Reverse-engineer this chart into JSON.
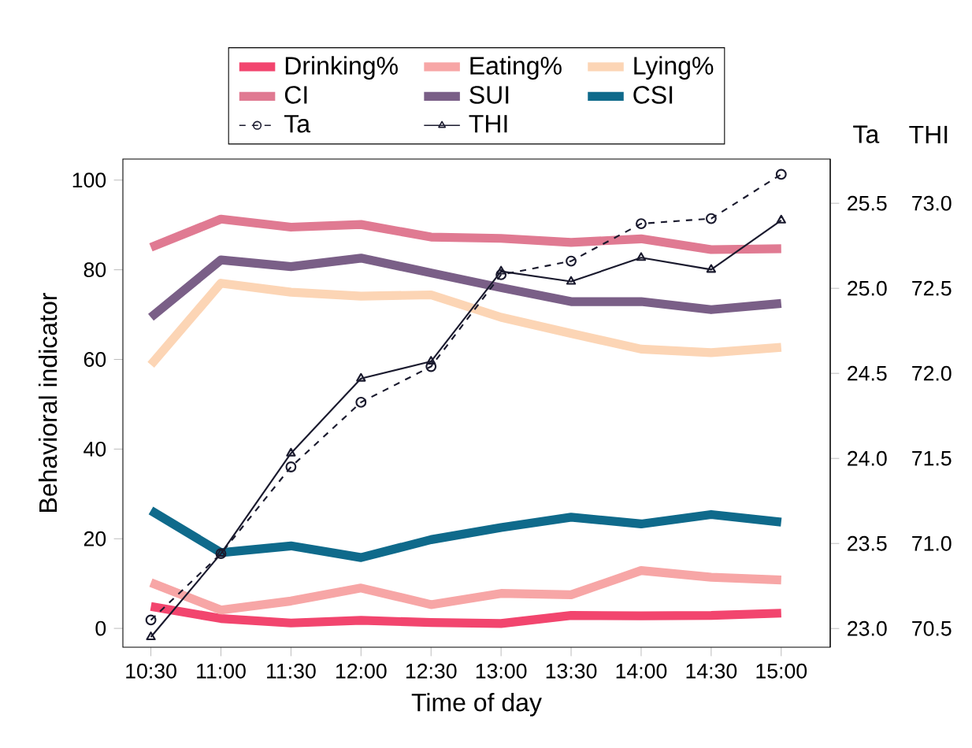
{
  "chart_data": {
    "type": "line",
    "xlabel": "Time of day",
    "ylabel": "Behavioral indicator",
    "y2label": "Ta",
    "y3label": "THI",
    "categories": [
      "10:30",
      "11:00",
      "11:30",
      "12:00",
      "12:30",
      "13:00",
      "13:30",
      "14:00",
      "14:30",
      "15:00"
    ],
    "legend": "top",
    "ylim": [
      -4.2,
      104.7
    ],
    "yticks": [
      0,
      20,
      40,
      60,
      80,
      100
    ],
    "y2lim": [
      22.89,
      25.76
    ],
    "y2ticks": [
      {
        "value": 23,
        "label": "23.0"
      },
      {
        "value": 23.5,
        "label": "23.5"
      },
      {
        "value": 24,
        "label": "24.0"
      },
      {
        "value": 24.5,
        "label": "24.5"
      },
      {
        "value": 25,
        "label": "25.0"
      },
      {
        "value": 25.5,
        "label": "25.5"
      }
    ],
    "y3lim": [
      70.39,
      73.26
    ],
    "y3ticks": [
      {
        "value": 70.5,
        "label": "70.5"
      },
      {
        "value": 71,
        "label": "71.0"
      },
      {
        "value": 71.5,
        "label": "71.5"
      },
      {
        "value": 72,
        "label": "72.0"
      },
      {
        "value": 72.5,
        "label": "72.5"
      },
      {
        "value": 73,
        "label": "73.0"
      }
    ],
    "series": [
      {
        "name": "Drinking%",
        "color": "#f2456e",
        "values": [
          4.9,
          2.2,
          1.2,
          1.8,
          1.3,
          1.1,
          2.9,
          2.8,
          2.9,
          3.4
        ]
      },
      {
        "name": "Eating%",
        "color": "#f7a6a6",
        "values": [
          10.2,
          4.1,
          6.1,
          9.0,
          5.3,
          7.8,
          7.5,
          12.9,
          11.4,
          10.8
        ]
      },
      {
        "name": "Lying%",
        "color": "#fcd5b5",
        "values": [
          58.8,
          77.0,
          75.0,
          74.1,
          74.4,
          69.4,
          65.8,
          62.3,
          61.5,
          62.7
        ]
      },
      {
        "name": "CI",
        "color": "#e07a92",
        "values": [
          85.0,
          91.3,
          89.5,
          90.1,
          87.3,
          87.0,
          86.1,
          86.9,
          84.5,
          84.7
        ]
      },
      {
        "name": "SUI",
        "color": "#7a5f87",
        "values": [
          69.4,
          82.2,
          80.7,
          82.6,
          79.3,
          76.0,
          72.9,
          72.9,
          71.1,
          72.5
        ]
      },
      {
        "name": "CSI",
        "color": "#0f6a8b",
        "values": [
          26.3,
          16.9,
          18.4,
          15.8,
          19.8,
          22.5,
          24.8,
          23.3,
          25.4,
          23.7
        ]
      },
      {
        "name": "Ta",
        "color": "#1a1a2e",
        "axis": "y2",
        "marker": "circle",
        "line_style": "dashed",
        "values": [
          23.05,
          23.44,
          23.95,
          24.33,
          24.54,
          25.08,
          25.16,
          25.38,
          25.41,
          25.67
        ]
      },
      {
        "name": "THI",
        "color": "#1a1a2e",
        "axis": "y3",
        "marker": "triangle",
        "line_style": "solid",
        "values": [
          70.45,
          70.94,
          71.53,
          71.97,
          72.07,
          72.6,
          72.54,
          72.68,
          72.61,
          72.9
        ]
      }
    ]
  }
}
